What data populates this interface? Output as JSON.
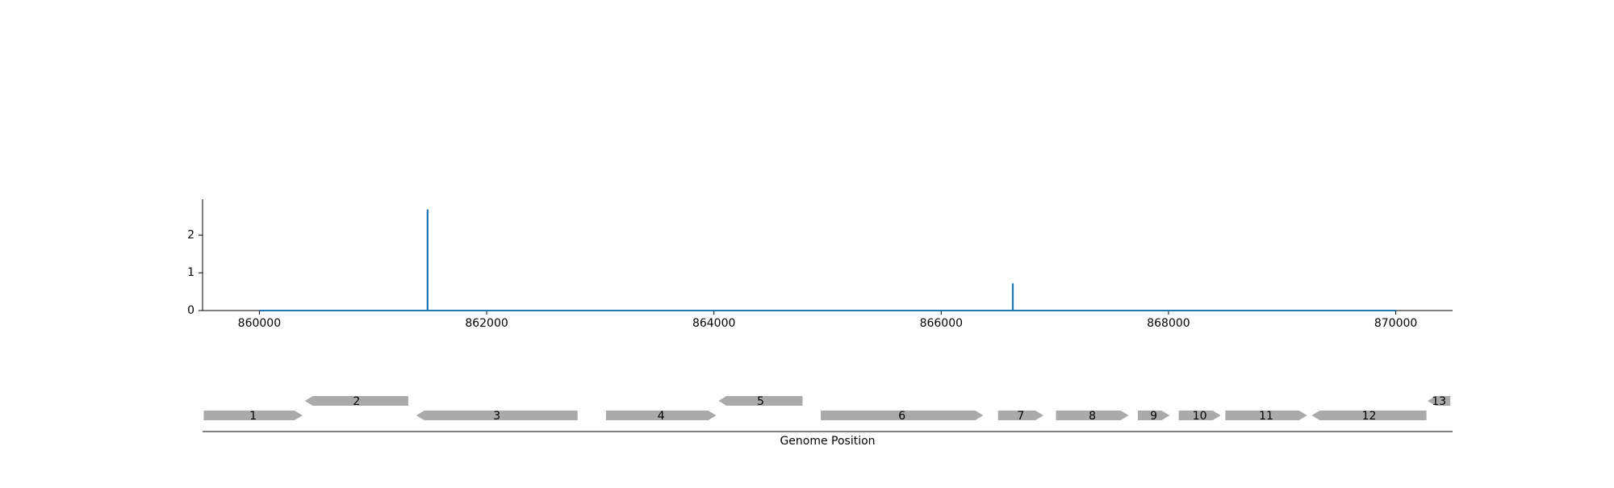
{
  "chart_data": [
    {
      "type": "line",
      "title": "",
      "xlabel": "",
      "ylabel": "",
      "xlim": [
        859500,
        870500
      ],
      "ylim": [
        0,
        2.95
      ],
      "x_ticks": [
        860000,
        862000,
        864000,
        866000,
        868000,
        870000
      ],
      "x_tick_labels": [
        "860000",
        "862000",
        "864000",
        "866000",
        "868000",
        "870000"
      ],
      "y_ticks": [
        0,
        1,
        2
      ],
      "y_tick_labels": [
        "0",
        "1",
        "2"
      ],
      "grid": false,
      "series": [
        {
          "color": "#1f77b4",
          "baseline": {
            "start": 860000,
            "end": 870000,
            "value": 0
          },
          "peaks": [
            {
              "x": 861480,
              "y": 2.68
            },
            {
              "x": 866630,
              "y": 0.72
            }
          ]
        }
      ]
    },
    {
      "type": "gene_track",
      "xlabel": "Genome Position",
      "xlim": [
        859500,
        870500
      ],
      "feature_color": "#aaaaaa",
      "genes": [
        {
          "label": "1",
          "start": 859510,
          "end": 860380,
          "strand": "+"
        },
        {
          "label": "2",
          "start": 860400,
          "end": 861310,
          "strand": "-"
        },
        {
          "label": "3",
          "start": 861380,
          "end": 862800,
          "strand": "-"
        },
        {
          "label": "4",
          "start": 863050,
          "end": 864020,
          "strand": "+"
        },
        {
          "label": "5",
          "start": 864040,
          "end": 864780,
          "strand": "-"
        },
        {
          "label": "6",
          "start": 864940,
          "end": 866370,
          "strand": "+"
        },
        {
          "label": "7",
          "start": 866500,
          "end": 866900,
          "strand": "+"
        },
        {
          "label": "8",
          "start": 867010,
          "end": 867650,
          "strand": "+"
        },
        {
          "label": "9",
          "start": 867730,
          "end": 868010,
          "strand": "+"
        },
        {
          "label": "10",
          "start": 868090,
          "end": 868460,
          "strand": "+"
        },
        {
          "label": "11",
          "start": 868500,
          "end": 869220,
          "strand": "+"
        },
        {
          "label": "12",
          "start": 869260,
          "end": 870270,
          "strand": "-"
        },
        {
          "label": "13",
          "start": 870280,
          "end": 870480,
          "strand": "-"
        }
      ]
    }
  ]
}
